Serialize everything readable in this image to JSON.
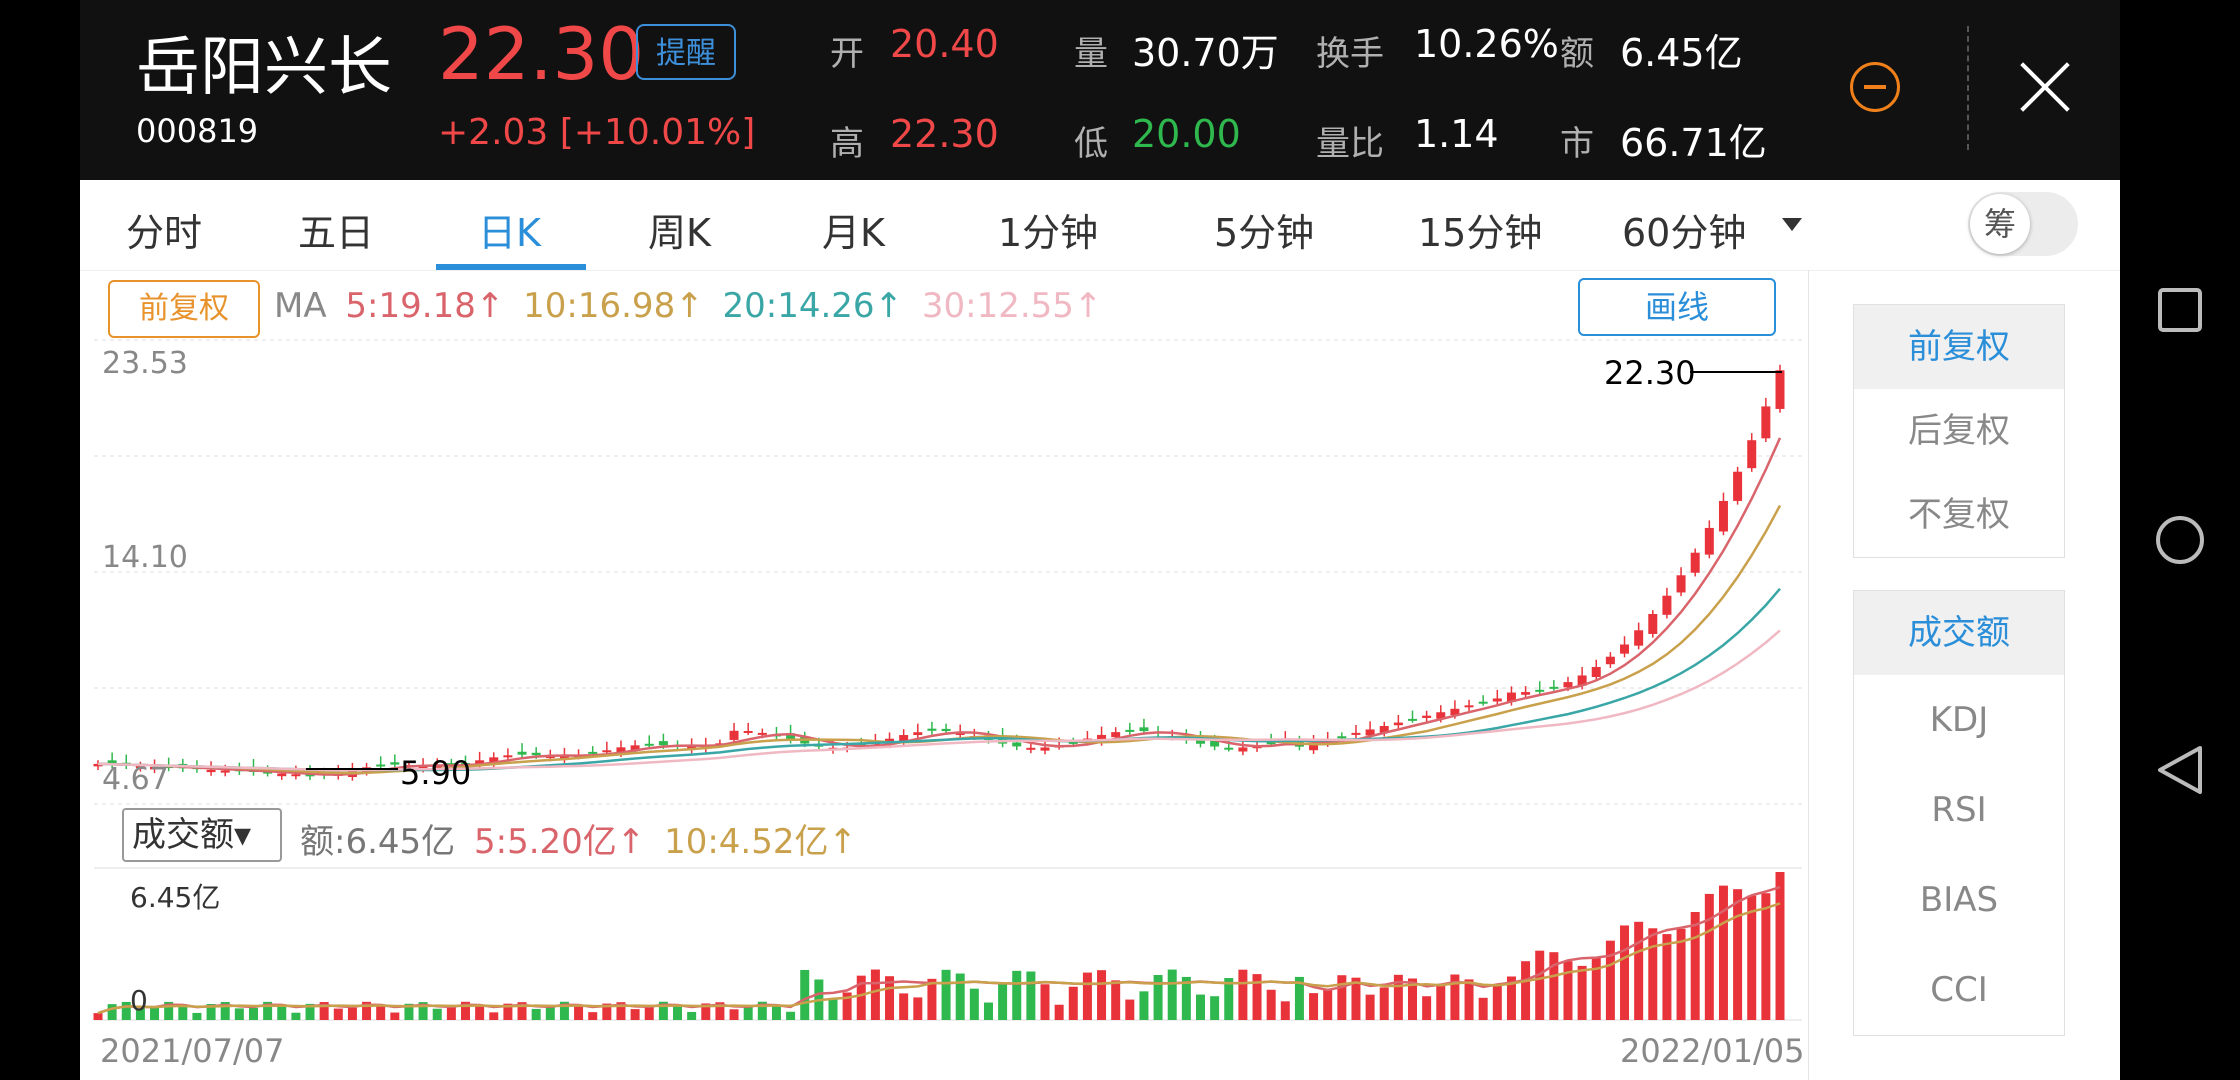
{
  "quote": {
    "name": "岳阳兴长",
    "code": "000819",
    "price": "22.30",
    "alert_label": "提醒",
    "change": "+2.03",
    "change_pct": "[+10.01%]",
    "fields": [
      {
        "label": "开",
        "value": "20.40",
        "color": "red"
      },
      {
        "label": "量",
        "value": "30.70万",
        "color": "white"
      },
      {
        "label": "换手",
        "value": "10.26%",
        "color": "white"
      },
      {
        "label": "额",
        "value": "6.45亿",
        "color": "white"
      },
      {
        "label": "高",
        "value": "22.30",
        "color": "red"
      },
      {
        "label": "低",
        "value": "20.00",
        "color": "green"
      },
      {
        "label": "量比",
        "value": "1.14",
        "color": "white"
      },
      {
        "label": "市",
        "value": "66.71亿",
        "color": "white"
      }
    ]
  },
  "tabs": [
    "分时",
    "五日",
    "日K",
    "周K",
    "月K",
    "1分钟",
    "5分钟",
    "15分钟",
    "60分钟"
  ],
  "active_tab": "日K",
  "chip_label": "筹",
  "chart": {
    "adjust_label": "前复权",
    "ma_prefix": "MA",
    "ma": [
      {
        "text": "5:19.18↑",
        "color": "#d9646b"
      },
      {
        "text": "10:16.98↑",
        "color": "#c9a04b"
      },
      {
        "text": "20:14.26↑",
        "color": "#3aa6a6"
      },
      {
        "text": "30:12.55↑",
        "color": "#f0b8c2"
      }
    ],
    "draw_label": "画线",
    "y_high": "23.53",
    "y_mid": "14.10",
    "y_low": "4.67",
    "max_mark": "22.30",
    "min_mark": "5.90",
    "vol_select": "成交额▾",
    "vol_legend": [
      {
        "text": "额:6.45亿",
        "color": "#777"
      },
      {
        "text": "5:5.20亿↑",
        "color": "#d9646b"
      },
      {
        "text": "10:4.52亿↑",
        "color": "#c9a04b"
      }
    ],
    "vol_high": "6.45亿",
    "vol_zero": "0",
    "date_start": "2021/07/07",
    "date_end": "2022/01/05"
  },
  "colors": {
    "up": "#e8333a",
    "down": "#2fb84e",
    "accent": "#2b8ed9"
  },
  "side_top": [
    "前复权",
    "后复权",
    "不复权"
  ],
  "side_bottom": [
    "成交额",
    "KDJ",
    "RSI",
    "BIAS",
    "CCI"
  ],
  "nav_icons": [
    "recent-apps-icon",
    "home-icon",
    "back-icon"
  ]
}
